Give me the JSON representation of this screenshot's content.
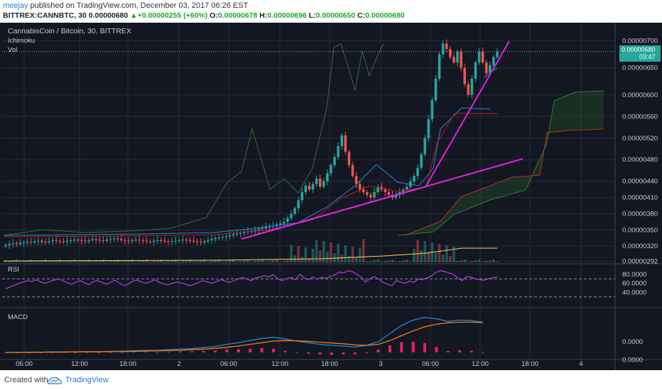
{
  "header": {
    "author": "meejay",
    "published_text": "published on TradingView.com, December 03, 2017 06:26 EST",
    "symbol": "BITTREX:CANNBTC, 30",
    "last": "0.00000680",
    "change": "+0.00000255 (+60%)",
    "o_label": "O:",
    "o": "0.00000678",
    "h_label": "H:",
    "h": "0.00000696",
    "l_label": "L:",
    "l": "0.00000650",
    "c_label": "C:",
    "c": "0.00000680"
  },
  "legend": {
    "title": "CannabisCoin / Bitcoin, 30, BITTREX",
    "ichimoku": "Ichimoku",
    "vol": "Vol",
    "rsi": "RSI",
    "macd": "MACD"
  },
  "price_badge": {
    "value": "0.00000680",
    "timer": "03:47"
  },
  "footer": {
    "created_with": "Created with",
    "brand": "TradingView"
  },
  "colors": {
    "background": "#131722",
    "up": "#26a69a",
    "down": "#ef5350",
    "trendline": "#e020e0",
    "rsi": "#b03ad0",
    "macd": "#1e88e5",
    "signal": "#ff7a00",
    "histogram": "#e91e63"
  },
  "chart_data": [
    {
      "type": "candlestick",
      "title": "CannabisCoin / Bitcoin, 30, BITTREX",
      "x_tick_labels": [
        "06:00",
        "12:00",
        "18:00",
        "2",
        "06:00",
        "12:00",
        "18:00",
        "3",
        "06:00",
        "12:00",
        "18:00",
        "4"
      ],
      "y_tick_labels": [
        "0.00000700",
        "0.00000650",
        "0.00000600",
        "0.00000560",
        "0.00000520",
        "0.00000480",
        "0.00000440",
        "0.00000410",
        "0.00000380",
        "0.00000350",
        "0.00000320",
        "0.00000292"
      ],
      "ylim": [
        2.9e-06,
        7.1e-06
      ],
      "grid": true,
      "candles_close": [
        3.22,
        3.24,
        3.25,
        3.24,
        3.26,
        3.27,
        3.28,
        3.27,
        3.29,
        3.3,
        3.28,
        3.27,
        3.29,
        3.31,
        3.3,
        3.29,
        3.28,
        3.3,
        3.31,
        3.32,
        3.31,
        3.3,
        3.29,
        3.31,
        3.33,
        3.32,
        3.31,
        3.3,
        3.32,
        3.33,
        3.34,
        3.33,
        3.31,
        3.3,
        3.29,
        3.31,
        3.32,
        3.31,
        3.3,
        3.29,
        3.28,
        3.3,
        3.31,
        3.3,
        3.29,
        3.28,
        3.29,
        3.3,
        3.31,
        3.32,
        3.31,
        3.3,
        3.29,
        3.28,
        3.27,
        3.29,
        3.31,
        3.33,
        3.35,
        3.36,
        3.37,
        3.38,
        3.4,
        3.42,
        3.43,
        3.44,
        3.46,
        3.47,
        3.48,
        3.5,
        3.52,
        3.53,
        3.55,
        3.57,
        3.58,
        3.6,
        3.62,
        3.65,
        3.72,
        3.8,
        3.9,
        4.05,
        4.2,
        4.32,
        4.25,
        4.35,
        4.45,
        4.3,
        4.4,
        4.55,
        4.7,
        4.85,
        5.05,
        5.25,
        4.95,
        4.7,
        4.5,
        4.35,
        4.25,
        4.2,
        4.15,
        4.1,
        4.2,
        4.3,
        4.25,
        4.2,
        4.15,
        4.1,
        4.15,
        4.2,
        4.25,
        4.3,
        4.4,
        4.5,
        4.65,
        4.9,
        5.2,
        5.55,
        5.9,
        6.3,
        6.75,
        6.95,
        6.85,
        6.7,
        6.6,
        6.8,
        6.5,
        6.2,
        6.0,
        6.3,
        6.6,
        6.8,
        6.6,
        6.4,
        6.55,
        6.7,
        6.8
      ],
      "candles_unit": "0.000001 BTC",
      "trendlines": [
        {
          "from": [
            "2 07:30",
            3.3e-06
          ],
          "to": [
            "3 05:00",
            4.18e-06
          ]
        },
        {
          "from": [
            "2 07:30",
            3.3e-06
          ],
          "to": [
            "3 15:00",
            4.7e-06
          ]
        },
        {
          "from": [
            "3 05:30",
            4.25e-06
          ],
          "to": [
            "3 14:00",
            6.9e-06
          ]
        }
      ],
      "current_price": 6.8e-06
    },
    {
      "type": "line",
      "title": "RSI",
      "y_tick_labels": [
        "80.0000",
        "60.0000",
        "40.0000"
      ],
      "levels": [
        70,
        30
      ],
      "values": [
        48,
        52,
        56,
        60,
        63,
        66,
        64,
        68,
        63,
        60,
        64,
        67,
        70,
        66,
        62,
        58,
        63,
        66,
        61,
        57,
        64,
        66,
        62,
        58,
        63,
        67,
        60,
        55,
        59,
        65,
        67,
        63,
        60,
        64,
        68,
        62,
        59,
        57,
        60,
        63,
        61,
        58,
        55,
        58,
        62,
        66,
        63,
        60,
        64,
        68,
        65,
        62,
        66,
        70,
        73,
        69,
        66,
        72,
        74,
        77,
        74,
        79,
        70,
        66,
        70,
        73,
        68,
        80,
        72,
        68,
        74,
        69,
        73,
        71,
        75,
        79,
        85,
        83,
        88,
        86,
        80,
        74,
        63,
        70,
        75,
        69,
        62,
        58,
        55,
        66,
        63,
        60,
        65,
        62,
        70,
        68,
        72,
        76,
        84,
        88,
        86,
        83,
        80,
        72,
        66,
        75,
        74,
        70,
        68,
        67,
        70,
        72,
        74
      ]
    },
    {
      "type": "line",
      "title": "MACD",
      "y_tick_labels": [
        "0.0000",
        "0.0000"
      ],
      "series": [
        {
          "values": [
            0.0,
            0.0,
            0.01,
            0.01,
            0.02,
            0.02,
            0.02,
            0.03,
            0.03,
            0.04,
            0.05,
            0.06,
            0.07,
            0.08,
            0.1,
            0.12,
            0.14,
            0.18,
            0.22,
            0.3,
            0.36,
            0.44,
            0.52,
            0.56,
            0.5,
            0.42,
            0.36,
            0.3,
            0.26,
            0.24,
            0.2,
            0.26,
            0.4,
            0.7,
            1.0,
            1.2,
            1.3,
            1.25,
            1.15,
            1.2,
            1.18,
            1.12
          ]
        },
        {
          "values": [
            0.0,
            0.0,
            0.0,
            0.01,
            0.01,
            0.01,
            0.02,
            0.02,
            0.02,
            0.03,
            0.03,
            0.04,
            0.05,
            0.06,
            0.07,
            0.08,
            0.1,
            0.12,
            0.15,
            0.19,
            0.24,
            0.3,
            0.36,
            0.42,
            0.44,
            0.43,
            0.41,
            0.38,
            0.35,
            0.32,
            0.28,
            0.26,
            0.3,
            0.44,
            0.62,
            0.8,
            0.95,
            1.05,
            1.1,
            1.12,
            1.12,
            1.11
          ]
        }
      ],
      "histogram": [
        0.0,
        0.0,
        0.0,
        0.0,
        0.01,
        0.01,
        0.0,
        0.01,
        0.01,
        0.01,
        0.02,
        0.02,
        0.02,
        0.02,
        0.03,
        0.04,
        0.04,
        0.06,
        0.07,
        0.11,
        0.12,
        0.14,
        0.16,
        0.14,
        0.06,
        -0.01,
        -0.05,
        -0.08,
        -0.09,
        -0.08,
        -0.08,
        0.0,
        0.1,
        0.26,
        0.38,
        0.4,
        0.35,
        0.2,
        0.05,
        0.08,
        0.06,
        0.01
      ]
    }
  ]
}
